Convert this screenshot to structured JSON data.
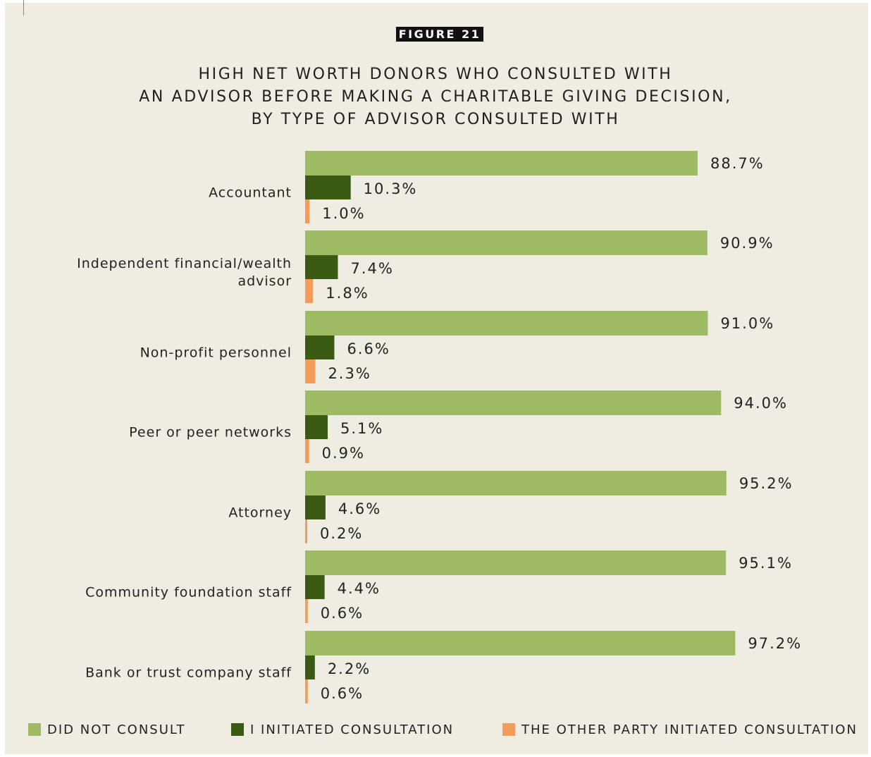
{
  "figure_label": "FIGURE 21",
  "title_lines": [
    "HIGH NET WORTH DONORS WHO CONSULTED WITH",
    "AN ADVISOR BEFORE MAKING A CHARITABLE GIVING DECISION,",
    "BY TYPE OF ADVISOR CONSULTED WITH"
  ],
  "colors": {
    "did_not_consult": "#9dbb62",
    "i_initiated": "#3b5a14",
    "other_party_initiated": "#f29b5a",
    "background": "#efece1"
  },
  "legend": [
    {
      "label": "DID NOT CONSULT",
      "color": "#9dbb62"
    },
    {
      "label": "I INITIATED CONSULTATION",
      "color": "#3b5a14"
    },
    {
      "label": "THE OTHER PARTY INITIATED CONSULTATION",
      "color": "#f29b5a"
    }
  ],
  "chart_data": {
    "type": "bar",
    "orientation": "horizontal",
    "categories": [
      [
        "Accountant"
      ],
      [
        "Independent financial/wealth",
        "advisor"
      ],
      [
        "Non-profit personnel"
      ],
      [
        "Peer or peer networks"
      ],
      [
        "Attorney"
      ],
      [
        "Community foundation staff"
      ],
      [
        "Bank or trust company staff"
      ]
    ],
    "series": [
      {
        "name": "DID NOT CONSULT",
        "values": [
          88.7,
          90.9,
          91.0,
          94.0,
          95.2,
          95.1,
          97.2
        ],
        "labels": [
          "88.7%",
          "90.9%",
          "91.0%",
          "94.0%",
          "95.2%",
          "95.1%",
          "97.2%"
        ]
      },
      {
        "name": "I INITIATED CONSULTATION",
        "values": [
          10.3,
          7.4,
          6.6,
          5.1,
          4.6,
          4.4,
          2.2
        ],
        "labels": [
          "10.3%",
          "7.4%",
          "6.6%",
          "5.1%",
          "4.6%",
          "4.4%",
          "2.2%"
        ]
      },
      {
        "name": "THE OTHER PARTY INITIATED CONSULTATION",
        "values": [
          1.0,
          1.8,
          2.3,
          0.9,
          0.2,
          0.6,
          0.6
        ],
        "labels": [
          "1.0%",
          "1.8%",
          "2.3%",
          "0.9%",
          "0.2%",
          "0.6%",
          "0.6%"
        ]
      }
    ],
    "unit": "%",
    "xlim": [
      0,
      100
    ],
    "grid": false,
    "legend_position": "bottom"
  }
}
